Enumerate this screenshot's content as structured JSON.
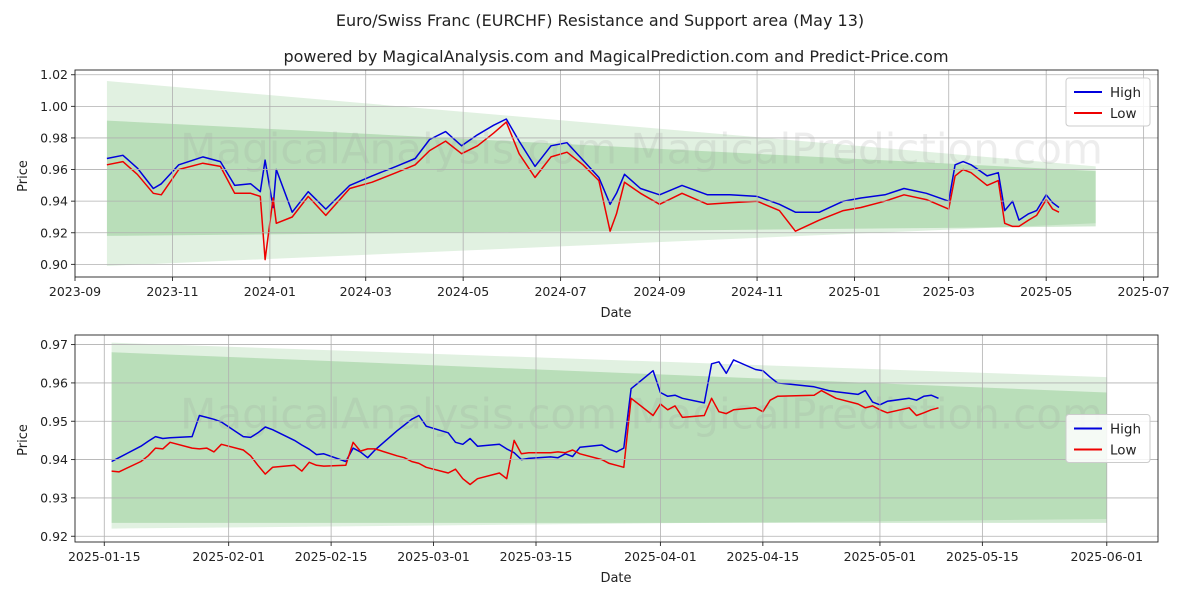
{
  "chart_data": [
    {
      "type": "line",
      "title": "Euro/Swiss Franc (EURCHF) Resistance and Support area (May 13)",
      "subtitle": "powered by MagicalAnalysis.com and MagicalPrediction.com and Predict-Price.com",
      "xlabel": "Date",
      "ylabel": "Price",
      "grid": true,
      "legend": "top-right",
      "watermark": "MagicalAnalysis.com   MagicalPrediction.com",
      "x_range": [
        "2023-09-01",
        "2025-07-10"
      ],
      "ylim": [
        0.892,
        1.023
      ],
      "x_ticks": [
        "2023-09",
        "2023-11",
        "2024-01",
        "2024-03",
        "2024-05",
        "2024-07",
        "2024-09",
        "2024-11",
        "2025-01",
        "2025-03",
        "2025-05",
        "2025-07"
      ],
      "y_ticks": [
        0.9,
        0.92,
        0.94,
        0.96,
        0.98,
        1.0,
        1.02
      ],
      "y_tick_labels": [
        "0.90",
        "0.92",
        "0.94",
        "0.96",
        "0.98",
        "1.00",
        "1.02"
      ],
      "bands": {
        "x": [
          "2023-09-21",
          "2025-06-01"
        ],
        "outer_upper": [
          1.016,
          0.962
        ],
        "outer_lower": [
          0.899,
          0.926
        ],
        "inner_upper": [
          0.991,
          0.959
        ],
        "inner_lower": [
          0.918,
          0.924
        ]
      },
      "series": [
        {
          "name": "High",
          "color": "#0000dd",
          "x": [
            "2023-09-21",
            "2023-10-01",
            "2023-10-10",
            "2023-10-20",
            "2023-10-25",
            "2023-11-05",
            "2023-11-20",
            "2023-12-01",
            "2023-12-10",
            "2023-12-20",
            "2023-12-26",
            "2023-12-29",
            "2024-01-03",
            "2024-01-05",
            "2024-01-15",
            "2024-01-25",
            "2024-02-05",
            "2024-02-20",
            "2024-03-05",
            "2024-03-20",
            "2024-04-01",
            "2024-04-10",
            "2024-04-20",
            "2024-04-30",
            "2024-05-10",
            "2024-05-20",
            "2024-05-28",
            "2024-06-05",
            "2024-06-15",
            "2024-06-25",
            "2024-07-05",
            "2024-07-15",
            "2024-07-25",
            "2024-08-01",
            "2024-08-05",
            "2024-08-10",
            "2024-08-20",
            "2024-09-01",
            "2024-09-15",
            "2024-10-01",
            "2024-10-15",
            "2024-11-01",
            "2024-11-15",
            "2024-11-25",
            "2024-12-10",
            "2024-12-25",
            "2025-01-05",
            "2025-01-20",
            "2025-02-01",
            "2025-02-15",
            "2025-03-01",
            "2025-03-05",
            "2025-03-10",
            "2025-03-15",
            "2025-03-25",
            "2025-04-01",
            "2025-04-05",
            "2025-04-10",
            "2025-04-14",
            "2025-04-20",
            "2025-04-25",
            "2025-05-01",
            "2025-05-05",
            "2025-05-09"
          ],
          "values": [
            0.967,
            0.969,
            0.961,
            0.948,
            0.951,
            0.963,
            0.968,
            0.965,
            0.95,
            0.951,
            0.946,
            0.966,
            0.936,
            0.96,
            0.933,
            0.946,
            0.935,
            0.95,
            0.956,
            0.962,
            0.967,
            0.979,
            0.984,
            0.975,
            0.982,
            0.988,
            0.992,
            0.978,
            0.962,
            0.975,
            0.977,
            0.966,
            0.955,
            0.938,
            0.945,
            0.957,
            0.948,
            0.944,
            0.95,
            0.944,
            0.944,
            0.943,
            0.938,
            0.933,
            0.933,
            0.94,
            0.942,
            0.944,
            0.948,
            0.945,
            0.94,
            0.963,
            0.965,
            0.963,
            0.956,
            0.958,
            0.934,
            0.94,
            0.928,
            0.932,
            0.934,
            0.944,
            0.939,
            0.936
          ]
        },
        {
          "name": "Low",
          "color": "#ee0000",
          "x": [
            "2023-09-21",
            "2023-10-01",
            "2023-10-10",
            "2023-10-20",
            "2023-10-25",
            "2023-11-05",
            "2023-11-20",
            "2023-12-01",
            "2023-12-10",
            "2023-12-20",
            "2023-12-26",
            "2023-12-29",
            "2024-01-03",
            "2024-01-05",
            "2024-01-15",
            "2024-01-25",
            "2024-02-05",
            "2024-02-20",
            "2024-03-05",
            "2024-03-20",
            "2024-04-01",
            "2024-04-10",
            "2024-04-20",
            "2024-04-30",
            "2024-05-10",
            "2024-05-20",
            "2024-05-28",
            "2024-06-05",
            "2024-06-15",
            "2024-06-25",
            "2024-07-05",
            "2024-07-15",
            "2024-07-25",
            "2024-08-01",
            "2024-08-05",
            "2024-08-10",
            "2024-08-20",
            "2024-09-01",
            "2024-09-15",
            "2024-10-01",
            "2024-10-15",
            "2024-11-01",
            "2024-11-15",
            "2024-11-25",
            "2024-12-10",
            "2024-12-25",
            "2025-01-05",
            "2025-01-20",
            "2025-02-01",
            "2025-02-15",
            "2025-03-01",
            "2025-03-05",
            "2025-03-10",
            "2025-03-15",
            "2025-03-25",
            "2025-04-01",
            "2025-04-05",
            "2025-04-10",
            "2025-04-14",
            "2025-04-20",
            "2025-04-25",
            "2025-05-01",
            "2025-05-05",
            "2025-05-09"
          ],
          "values": [
            0.963,
            0.965,
            0.957,
            0.945,
            0.944,
            0.96,
            0.964,
            0.962,
            0.945,
            0.945,
            0.943,
            0.903,
            0.942,
            0.926,
            0.93,
            0.943,
            0.931,
            0.948,
            0.952,
            0.958,
            0.963,
            0.972,
            0.978,
            0.97,
            0.975,
            0.983,
            0.99,
            0.97,
            0.955,
            0.968,
            0.971,
            0.963,
            0.953,
            0.921,
            0.932,
            0.952,
            0.945,
            0.938,
            0.945,
            0.938,
            0.939,
            0.94,
            0.934,
            0.921,
            0.928,
            0.934,
            0.936,
            0.94,
            0.944,
            0.941,
            0.935,
            0.956,
            0.96,
            0.958,
            0.95,
            0.953,
            0.926,
            0.924,
            0.924,
            0.928,
            0.931,
            0.941,
            0.935,
            0.933
          ]
        }
      ]
    },
    {
      "type": "line",
      "xlabel": "Date",
      "ylabel": "Price",
      "grid": true,
      "legend": "center-right",
      "watermark": "MagicalAnalysis.com   MagicalPrediction.com",
      "x_range": [
        "2025-01-11",
        "2025-06-08"
      ],
      "ylim": [
        0.9185,
        0.9725
      ],
      "x_ticks": [
        "2025-01-15",
        "2025-02-01",
        "2025-02-15",
        "2025-03-01",
        "2025-03-15",
        "2025-04-01",
        "2025-04-15",
        "2025-05-01",
        "2025-05-15",
        "2025-06-01"
      ],
      "y_ticks": [
        0.92,
        0.93,
        0.94,
        0.95,
        0.96,
        0.97
      ],
      "y_tick_labels": [
        "0.92",
        "0.93",
        "0.94",
        "0.95",
        "0.96",
        "0.97"
      ],
      "bands": {
        "x": [
          "2025-01-16",
          "2025-06-01"
        ],
        "outer_upper": [
          0.9705,
          0.9615
        ],
        "outer_lower": [
          0.922,
          0.9245
        ],
        "inner_upper": [
          0.968,
          0.9575
        ],
        "inner_lower": [
          0.9235,
          0.9235
        ]
      },
      "series": [
        {
          "name": "High",
          "color": "#0000dd",
          "x": [
            "2025-01-16",
            "2025-01-17",
            "2025-01-20",
            "2025-01-21",
            "2025-01-22",
            "2025-01-23",
            "2025-01-24",
            "2025-01-27",
            "2025-01-28",
            "2025-01-29",
            "2025-01-30",
            "2025-01-31",
            "2025-02-03",
            "2025-02-04",
            "2025-02-05",
            "2025-02-06",
            "2025-02-07",
            "2025-02-10",
            "2025-02-11",
            "2025-02-12",
            "2025-02-13",
            "2025-02-14",
            "2025-02-17",
            "2025-02-18",
            "2025-02-19",
            "2025-02-20",
            "2025-02-21",
            "2025-02-24",
            "2025-02-25",
            "2025-02-26",
            "2025-02-27",
            "2025-02-28",
            "2025-03-03",
            "2025-03-04",
            "2025-03-05",
            "2025-03-06",
            "2025-03-07",
            "2025-03-10",
            "2025-03-11",
            "2025-03-12",
            "2025-03-13",
            "2025-03-14",
            "2025-03-17",
            "2025-03-18",
            "2025-03-19",
            "2025-03-20",
            "2025-03-21",
            "2025-03-24",
            "2025-03-25",
            "2025-03-26",
            "2025-03-27",
            "2025-03-28",
            "2025-03-31",
            "2025-04-01",
            "2025-04-02",
            "2025-04-03",
            "2025-04-04",
            "2025-04-07",
            "2025-04-08",
            "2025-04-09",
            "2025-04-10",
            "2025-04-11",
            "2025-04-14",
            "2025-04-15",
            "2025-04-16",
            "2025-04-17",
            "2025-04-22",
            "2025-04-23",
            "2025-04-24",
            "2025-04-25",
            "2025-04-28",
            "2025-04-29",
            "2025-04-30",
            "2025-05-01",
            "2025-05-02",
            "2025-05-05",
            "2025-05-06",
            "2025-05-07",
            "2025-05-08",
            "2025-05-09"
          ],
          "values": [
            0.9395,
            0.9405,
            0.9435,
            0.9448,
            0.946,
            0.9455,
            0.9457,
            0.946,
            0.9515,
            0.951,
            0.9505,
            0.9498,
            0.946,
            0.9458,
            0.947,
            0.9485,
            0.9478,
            0.945,
            0.9438,
            0.9427,
            0.9413,
            0.9415,
            0.9395,
            0.943,
            0.942,
            0.9405,
            0.9425,
            0.9475,
            0.949,
            0.9505,
            0.9515,
            0.9487,
            0.947,
            0.9445,
            0.944,
            0.9455,
            0.9435,
            0.944,
            0.9428,
            0.9418,
            0.94,
            0.9403,
            0.9407,
            0.9405,
            0.9415,
            0.9408,
            0.9432,
            0.9438,
            0.9427,
            0.942,
            0.943,
            0.9585,
            0.9632,
            0.9575,
            0.9565,
            0.9568,
            0.956,
            0.9548,
            0.965,
            0.9655,
            0.9625,
            0.966,
            0.9635,
            0.9632,
            0.9615,
            0.96,
            0.959,
            0.9585,
            0.958,
            0.9577,
            0.957,
            0.958,
            0.955,
            0.9543,
            0.9552,
            0.956,
            0.9555,
            0.9565,
            0.9568,
            0.956
          ]
        },
        {
          "name": "Low",
          "color": "#ee0000",
          "x": [
            "2025-01-16",
            "2025-01-17",
            "2025-01-20",
            "2025-01-21",
            "2025-01-22",
            "2025-01-23",
            "2025-01-24",
            "2025-01-27",
            "2025-01-28",
            "2025-01-29",
            "2025-01-30",
            "2025-01-31",
            "2025-02-03",
            "2025-02-04",
            "2025-02-05",
            "2025-02-06",
            "2025-02-07",
            "2025-02-10",
            "2025-02-11",
            "2025-02-12",
            "2025-02-13",
            "2025-02-14",
            "2025-02-17",
            "2025-02-18",
            "2025-02-19",
            "2025-02-20",
            "2025-02-21",
            "2025-02-24",
            "2025-02-25",
            "2025-02-26",
            "2025-02-27",
            "2025-02-28",
            "2025-03-03",
            "2025-03-04",
            "2025-03-05",
            "2025-03-06",
            "2025-03-07",
            "2025-03-10",
            "2025-03-11",
            "2025-03-12",
            "2025-03-13",
            "2025-03-14",
            "2025-03-17",
            "2025-03-18",
            "2025-03-19",
            "2025-03-20",
            "2025-03-21",
            "2025-03-24",
            "2025-03-25",
            "2025-03-26",
            "2025-03-27",
            "2025-03-28",
            "2025-03-31",
            "2025-04-01",
            "2025-04-02",
            "2025-04-03",
            "2025-04-04",
            "2025-04-07",
            "2025-04-08",
            "2025-04-09",
            "2025-04-10",
            "2025-04-11",
            "2025-04-14",
            "2025-04-15",
            "2025-04-16",
            "2025-04-17",
            "2025-04-22",
            "2025-04-23",
            "2025-04-24",
            "2025-04-25",
            "2025-04-28",
            "2025-04-29",
            "2025-04-30",
            "2025-05-01",
            "2025-05-02",
            "2025-05-05",
            "2025-05-06",
            "2025-05-07",
            "2025-05-08",
            "2025-05-09"
          ],
          "values": [
            0.937,
            0.9368,
            0.9395,
            0.941,
            0.943,
            0.9428,
            0.9445,
            0.943,
            0.9428,
            0.943,
            0.942,
            0.944,
            0.9425,
            0.941,
            0.9385,
            0.9362,
            0.938,
            0.9385,
            0.937,
            0.9393,
            0.9385,
            0.9383,
            0.9385,
            0.9445,
            0.9422,
            0.9428,
            0.9428,
            0.941,
            0.9405,
            0.9395,
            0.939,
            0.938,
            0.9365,
            0.9375,
            0.935,
            0.9335,
            0.935,
            0.9365,
            0.935,
            0.945,
            0.9415,
            0.9418,
            0.9418,
            0.942,
            0.9418,
            0.9425,
            0.9415,
            0.94,
            0.939,
            0.9385,
            0.938,
            0.956,
            0.9515,
            0.9545,
            0.953,
            0.954,
            0.951,
            0.9515,
            0.956,
            0.9525,
            0.952,
            0.953,
            0.9535,
            0.9525,
            0.9555,
            0.9565,
            0.9568,
            0.958,
            0.957,
            0.956,
            0.9545,
            0.9535,
            0.954,
            0.953,
            0.9522,
            0.9535,
            0.9515,
            0.9522,
            0.953,
            0.9535
          ]
        }
      ]
    }
  ]
}
